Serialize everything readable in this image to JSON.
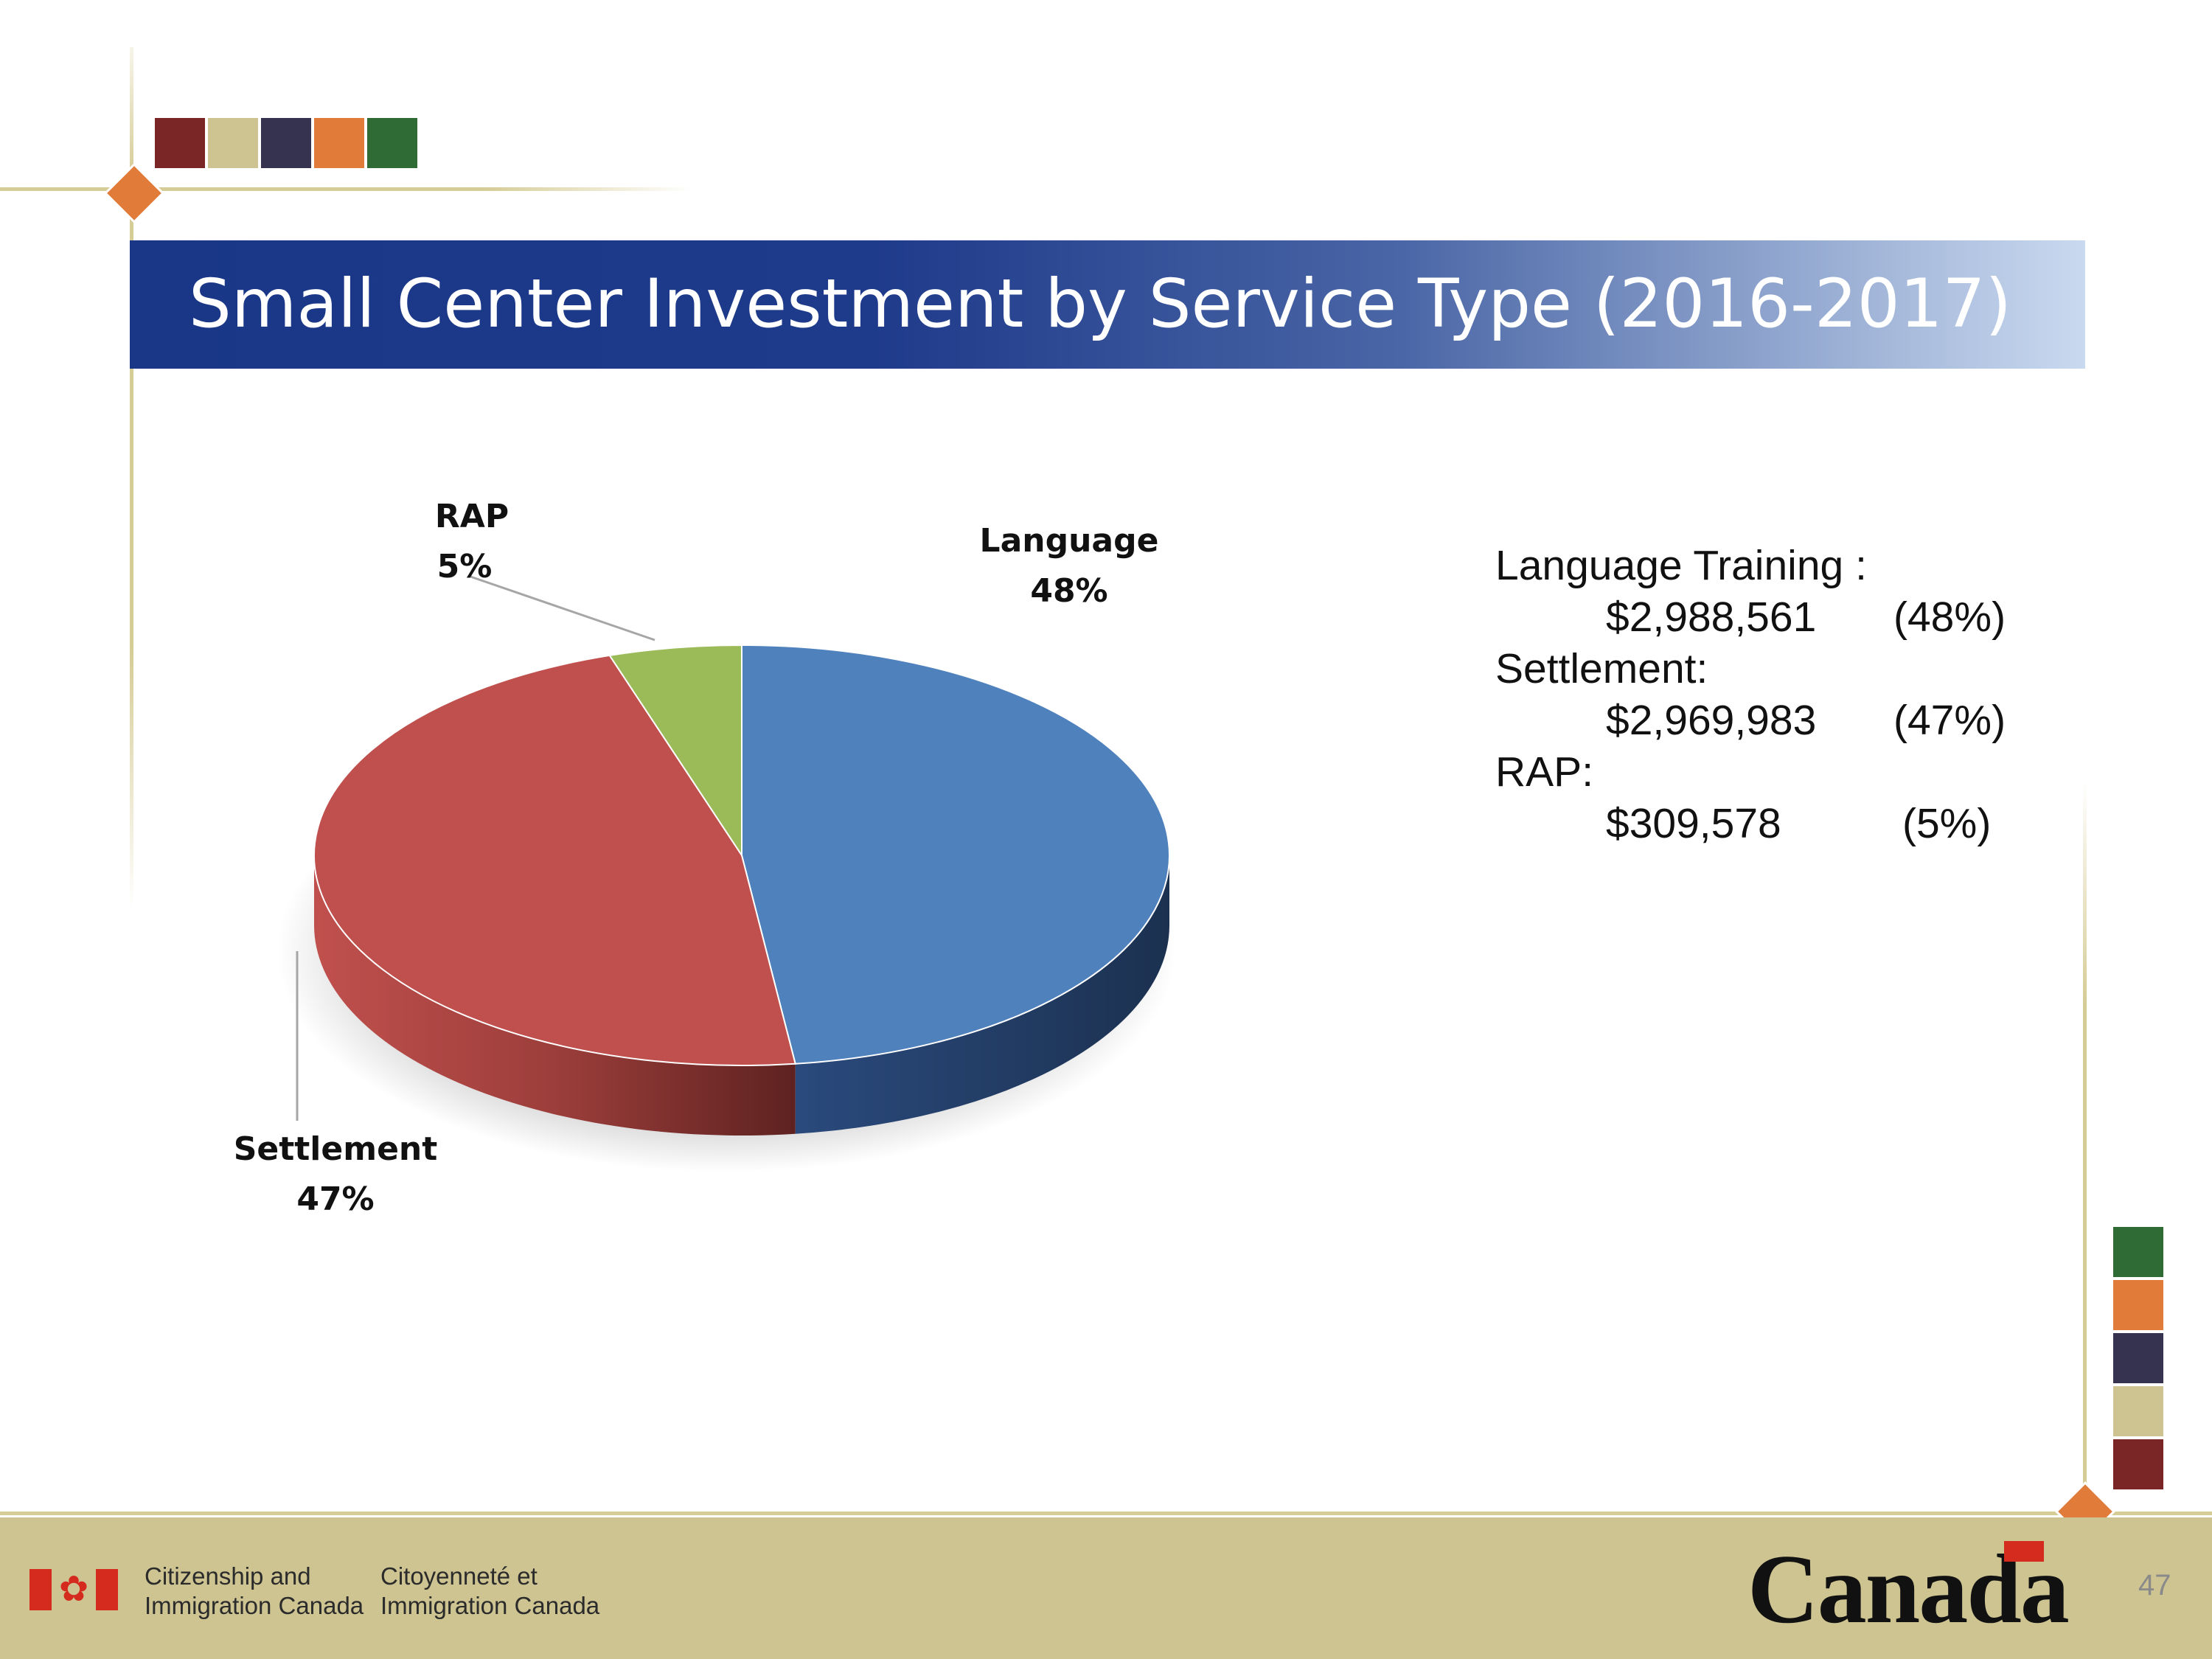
{
  "slide": {
    "title": "Small Center Investment by Service Type (2016-2017)",
    "page_number": "47"
  },
  "decor": {
    "swatch_colors": [
      "#7a2626",
      "#cdc491",
      "#35334f",
      "#e07b39",
      "#2e6b35"
    ],
    "accent_color": "#e07b39",
    "title_bar_color": "#1e3a8a"
  },
  "chart_data": {
    "type": "pie",
    "title": "",
    "slices": [
      {
        "name": "Language",
        "label": "Language",
        "percent_label": "48%",
        "value": 48,
        "color": "#4f81bd"
      },
      {
        "name": "Settlement",
        "label": "Settlement",
        "percent_label": "47%",
        "value": 47,
        "color": "#c0504d"
      },
      {
        "name": "RAP",
        "label": "RAP",
        "percent_label": "5%",
        "value": 5,
        "color": "#9bbb59"
      }
    ]
  },
  "legend": {
    "rows": [
      {
        "heading": "Language Training :"
      },
      {
        "amount": "$2,988,561",
        "percent": "(48%)"
      },
      {
        "heading": "Settlement:"
      },
      {
        "amount": "$2,969,983",
        "percent": "(47%)"
      },
      {
        "heading": "RAP:"
      },
      {
        "amount": "$309,578",
        "percent": "(5%)"
      }
    ]
  },
  "footer": {
    "dept_en_line1": "Citizenship and",
    "dept_en_line2": "Immigration Canada",
    "dept_fr_line1": "Citoyenneté et",
    "dept_fr_line2": "Immigration Canada",
    "wordmark": "Canada"
  }
}
